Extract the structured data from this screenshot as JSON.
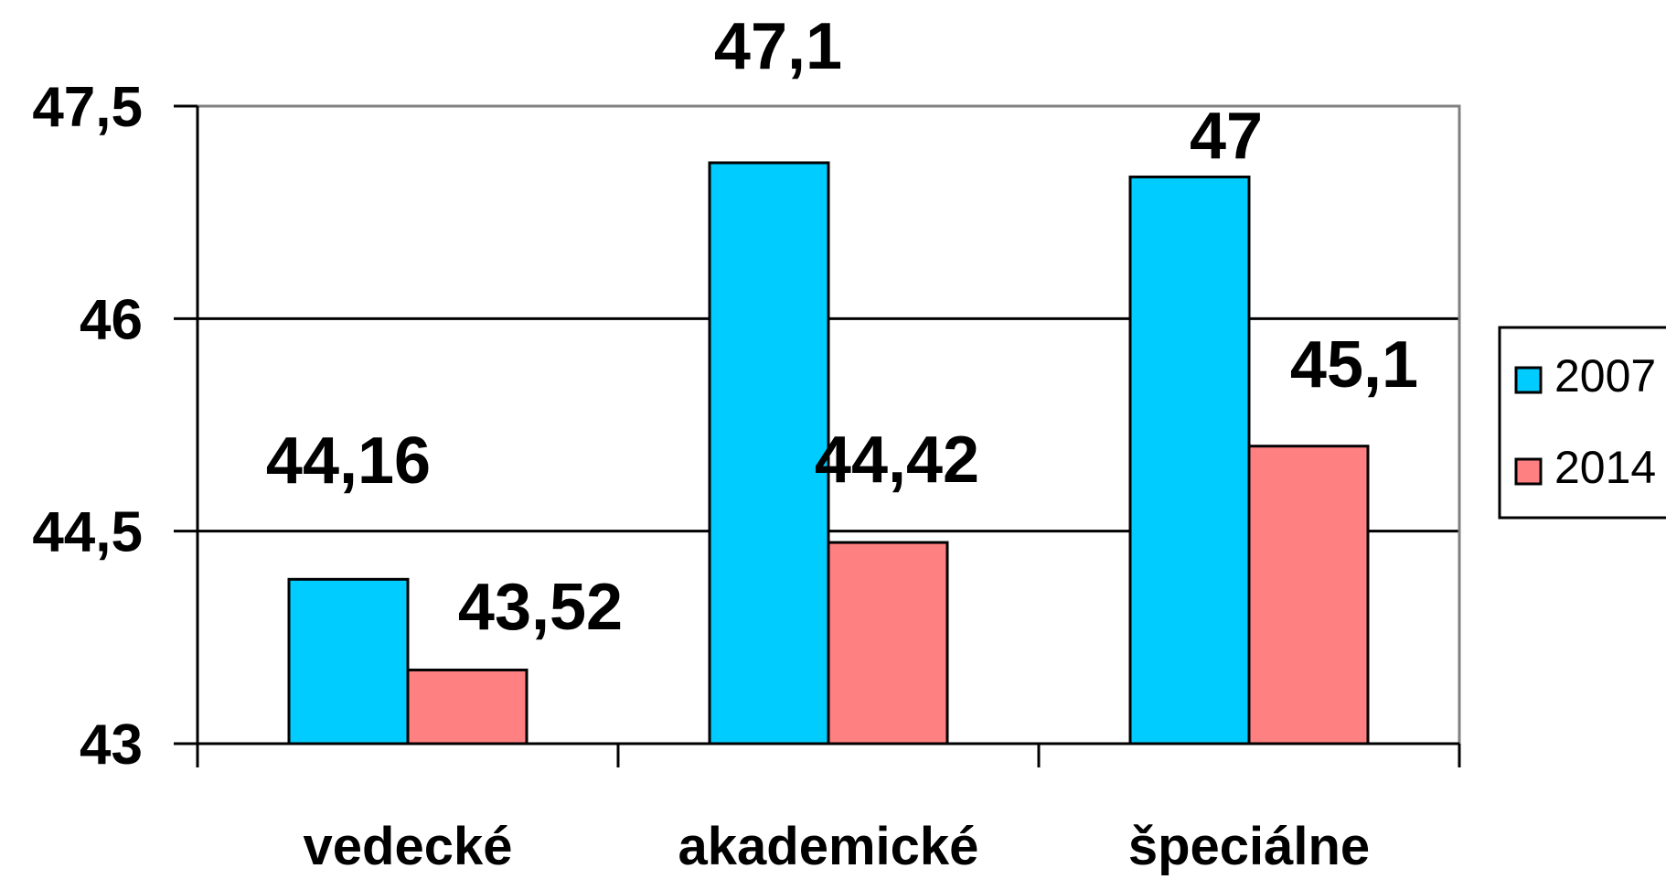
{
  "chart_data": {
    "type": "bar",
    "title": "",
    "xlabel": "",
    "ylabel": "",
    "ylim": [
      43,
      47.5
    ],
    "yticks": [
      43,
      44.5,
      46,
      47.5
    ],
    "ytick_labels": [
      "43",
      "44,5",
      "46",
      "47,5"
    ],
    "grid": true,
    "legend_position": "right",
    "categories": [
      "vedecké",
      "akademické",
      "špeciálne"
    ],
    "series": [
      {
        "name": "2007",
        "color": "#00ccff",
        "values": [
          44.16,
          47.1,
          47
        ],
        "labels": [
          "44,16",
          "47,1",
          "47"
        ]
      },
      {
        "name": "2014",
        "color": "#ff8080",
        "values": [
          43.52,
          44.42,
          45.1
        ],
        "labels": [
          "43,52",
          "44,42",
          "45,1"
        ]
      }
    ]
  }
}
